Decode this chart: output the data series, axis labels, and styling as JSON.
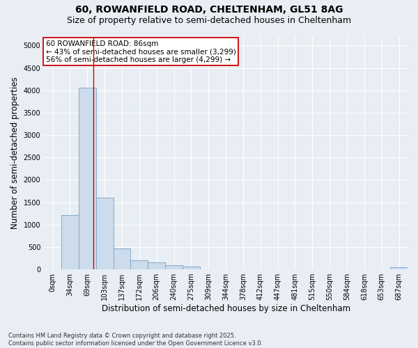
{
  "title_line1": "60, ROWANFIELD ROAD, CHELTENHAM, GL51 8AG",
  "title_line2": "Size of property relative to semi-detached houses in Cheltenham",
  "xlabel": "Distribution of semi-detached houses by size in Cheltenham",
  "ylabel": "Number of semi-detached properties",
  "categories": [
    "0sqm",
    "34sqm",
    "69sqm",
    "103sqm",
    "137sqm",
    "172sqm",
    "206sqm",
    "240sqm",
    "275sqm",
    "309sqm",
    "344sqm",
    "378sqm",
    "412sqm",
    "447sqm",
    "481sqm",
    "515sqm",
    "550sqm",
    "584sqm",
    "618sqm",
    "653sqm",
    "687sqm"
  ],
  "values": [
    5,
    1220,
    4050,
    1600,
    470,
    210,
    150,
    100,
    70,
    5,
    5,
    5,
    5,
    0,
    0,
    0,
    0,
    0,
    0,
    0,
    50
  ],
  "bar_color": "#ccdcec",
  "bar_edge_color": "#85a8c8",
  "red_line_x": 2.35,
  "annotation_text": "60 ROWANFIELD ROAD: 86sqm\n← 43% of semi-detached houses are smaller (3,299)\n56% of semi-detached houses are larger (4,299) →",
  "annotation_box_color": "white",
  "annotation_box_edge": "#cc0000",
  "ylim": [
    0,
    5200
  ],
  "yticks": [
    0,
    500,
    1000,
    1500,
    2000,
    2500,
    3000,
    3500,
    4000,
    4500,
    5000
  ],
  "background_color": "#e8eef4",
  "grid_color": "#ffffff",
  "footer_text": "Contains HM Land Registry data © Crown copyright and database right 2025.\nContains public sector information licensed under the Open Government Licence v3.0.",
  "title_fontsize": 10,
  "subtitle_fontsize": 9,
  "axis_label_fontsize": 8.5,
  "tick_fontsize": 7,
  "annotation_fontsize": 7.5
}
